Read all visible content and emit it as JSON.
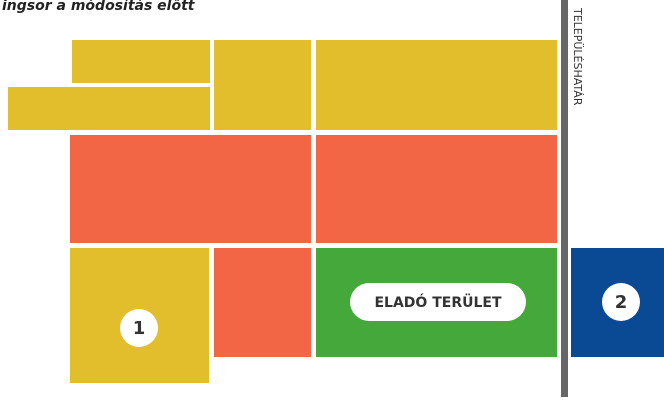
{
  "title": "ingsor a módosítás előtt",
  "boundary_label": "TELEPÜLÉSHATÁR",
  "sale_label": "ELADÓ TERÜLET",
  "markers": [
    "1",
    "2"
  ]
}
